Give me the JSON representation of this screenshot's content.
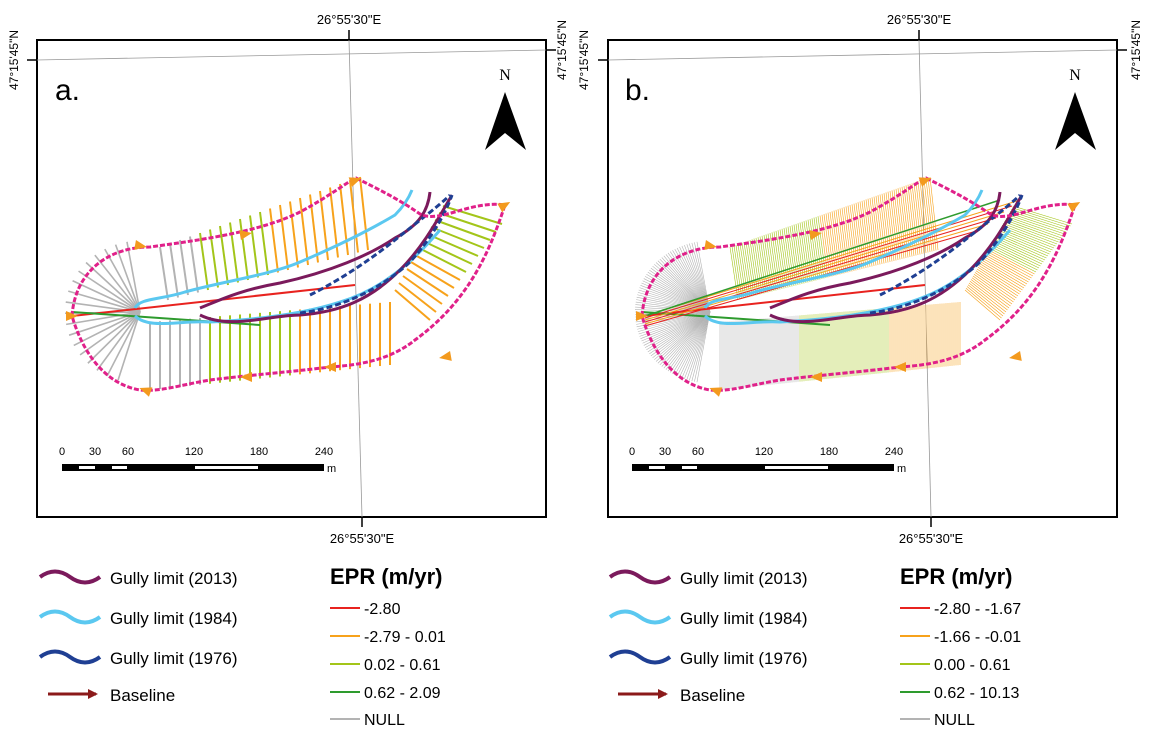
{
  "panels": [
    {
      "id": "a",
      "panel_label": "a.",
      "coords": {
        "lon_top": "26°55'30\"E",
        "lon_bottom": "26°55'30\"E",
        "lat_left": "47°15'45\"N",
        "lat_right": "47°15'45\"N"
      },
      "north_label": "N",
      "scalebar": {
        "ticks": [
          "0",
          "30",
          "60",
          "120",
          "180",
          "240"
        ],
        "unit": "m"
      },
      "legend": {
        "lines": [
          {
            "label": "Gully limit (2013)",
            "color": "#7b1a5c"
          },
          {
            "label": "Gully limit (1984)",
            "color": "#5bc8f0"
          },
          {
            "label": "Gully limit (1976)",
            "color": "#1f3f93"
          },
          {
            "label": "Baseline",
            "color": "#8b1a1a"
          }
        ],
        "epr_title": "EPR (m/yr)",
        "epr_classes": [
          {
            "label": "-2.80",
            "color": "#e8231f"
          },
          {
            "label": "-2.79 - 0.01",
            "color": "#f7a21b"
          },
          {
            "label": "0.02 - 0.61",
            "color": "#a3c519"
          },
          {
            "label": "0.62 - 2.09",
            "color": "#2e9b2e"
          },
          {
            "label": "NULL",
            "color": "#b3b3b3"
          }
        ]
      }
    },
    {
      "id": "b",
      "panel_label": "b.",
      "coords": {
        "lon_top": "26°55'30\"E",
        "lon_bottom": "26°55'30\"E",
        "lat_left": "47°15'45\"N",
        "lat_right": "47°15'45\"N"
      },
      "north_label": "N",
      "scalebar": {
        "ticks": [
          "0",
          "30",
          "60",
          "120",
          "180",
          "240"
        ],
        "unit": "m"
      },
      "legend": {
        "lines": [
          {
            "label": "Gully limit (2013)",
            "color": "#7b1a5c"
          },
          {
            "label": "Gully limit (1984)",
            "color": "#5bc8f0"
          },
          {
            "label": "Gully limit (1976)",
            "color": "#1f3f93"
          },
          {
            "label": "Baseline",
            "color": "#8b1a1a"
          }
        ],
        "epr_title": "EPR (m/yr)",
        "epr_classes": [
          {
            "label": "-2.80 - -1.67",
            "color": "#e8231f"
          },
          {
            "label": "-1.66 - -0.01",
            "color": "#f7a21b"
          },
          {
            "label": "0.00 - 0.61",
            "color": "#a3c519"
          },
          {
            "label": "0.62 - 10.13",
            "color": "#2e9b2e"
          },
          {
            "label": "NULL",
            "color": "#b3b3b3"
          }
        ]
      }
    }
  ],
  "colors": {
    "outer_boundary": "#e0218a",
    "baseline_arrow": "#f39a1e",
    "null_transect": "#b3b3b3",
    "green_transect": "#a3c519",
    "orange_transect": "#f7a21b",
    "red_transect": "#e8231f",
    "dark_green_transect": "#2e9b2e"
  }
}
